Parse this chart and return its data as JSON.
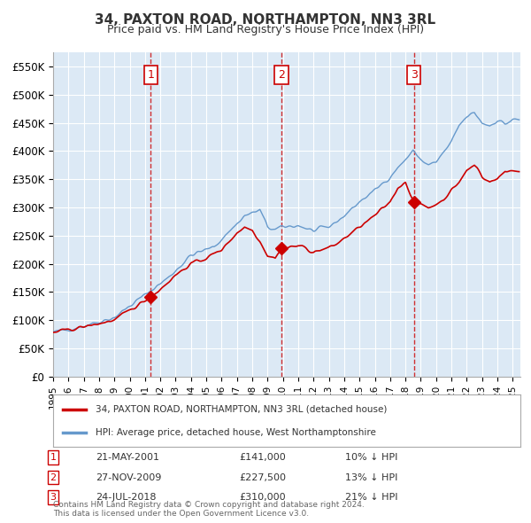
{
  "title_line1": "34, PAXTON ROAD, NORTHAMPTON, NN3 3RL",
  "title_line2": "Price paid vs. HM Land Registry's House Price Index (HPI)",
  "legend_label_red": "34, PAXTON ROAD, NORTHAMPTON, NN3 3RL (detached house)",
  "legend_label_blue": "HPI: Average price, detached house, West Northamptonshire",
  "footer": "Contains HM Land Registry data © Crown copyright and database right 2024.\nThis data is licensed under the Open Government Licence v3.0.",
  "transactions": [
    {
      "num": 1,
      "date": "21-MAY-2001",
      "price": 141000,
      "pct": "10%",
      "x_year": 2001.38
    },
    {
      "num": 2,
      "date": "27-NOV-2009",
      "price": 227500,
      "pct": "13%",
      "x_year": 2009.9
    },
    {
      "num": 3,
      "date": "24-JUL-2018",
      "price": 310000,
      "pct": "21%",
      "x_year": 2018.55
    }
  ],
  "ylim": [
    0,
    575000
  ],
  "xlim_start": 1995.0,
  "xlim_end": 2025.5,
  "yticks": [
    0,
    50000,
    100000,
    150000,
    200000,
    250000,
    300000,
    350000,
    400000,
    450000,
    500000,
    550000
  ],
  "ytick_labels": [
    "£0",
    "£50K",
    "£100K",
    "£150K",
    "£200K",
    "£250K",
    "£300K",
    "£350K",
    "£400K",
    "£450K",
    "£500K",
    "£550K"
  ],
  "xticks": [
    1995,
    1996,
    1997,
    1998,
    1999,
    2000,
    2001,
    2002,
    2003,
    2004,
    2005,
    2006,
    2007,
    2008,
    2009,
    2010,
    2011,
    2012,
    2013,
    2014,
    2015,
    2016,
    2017,
    2018,
    2019,
    2020,
    2021,
    2022,
    2023,
    2024,
    2025
  ],
  "bg_color": "#dce9f5",
  "grid_color": "#ffffff",
  "red_color": "#cc0000",
  "blue_color": "#6699cc",
  "dashed_color": "#cc0000"
}
